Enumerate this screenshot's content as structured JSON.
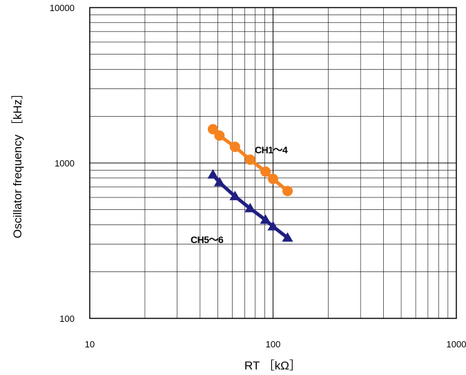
{
  "chart_data": {
    "type": "line",
    "xlabel": "RT ［kΩ］",
    "ylabel": "Oscillator frequency ［kHz］",
    "x_scale": "log",
    "y_scale": "log",
    "xlim": [
      10,
      1000
    ],
    "ylim": [
      100,
      10000
    ],
    "x_ticks": [
      "10",
      "100",
      "1000"
    ],
    "y_ticks": [
      "100",
      "1000",
      "10000"
    ],
    "grid": true,
    "series": [
      {
        "name": "CH1～4",
        "color": "#f5821f",
        "marker": "circle",
        "x": [
          47,
          51,
          62,
          75,
          91,
          100,
          120
        ],
        "y": [
          1650,
          1500,
          1270,
          1050,
          880,
          790,
          660
        ]
      },
      {
        "name": "CH5～6",
        "color": "#1f1f80",
        "marker": "triangle",
        "x": [
          47,
          51,
          62,
          75,
          91,
          100,
          120
        ],
        "y": [
          840,
          750,
          610,
          510,
          430,
          390,
          330
        ]
      }
    ]
  }
}
